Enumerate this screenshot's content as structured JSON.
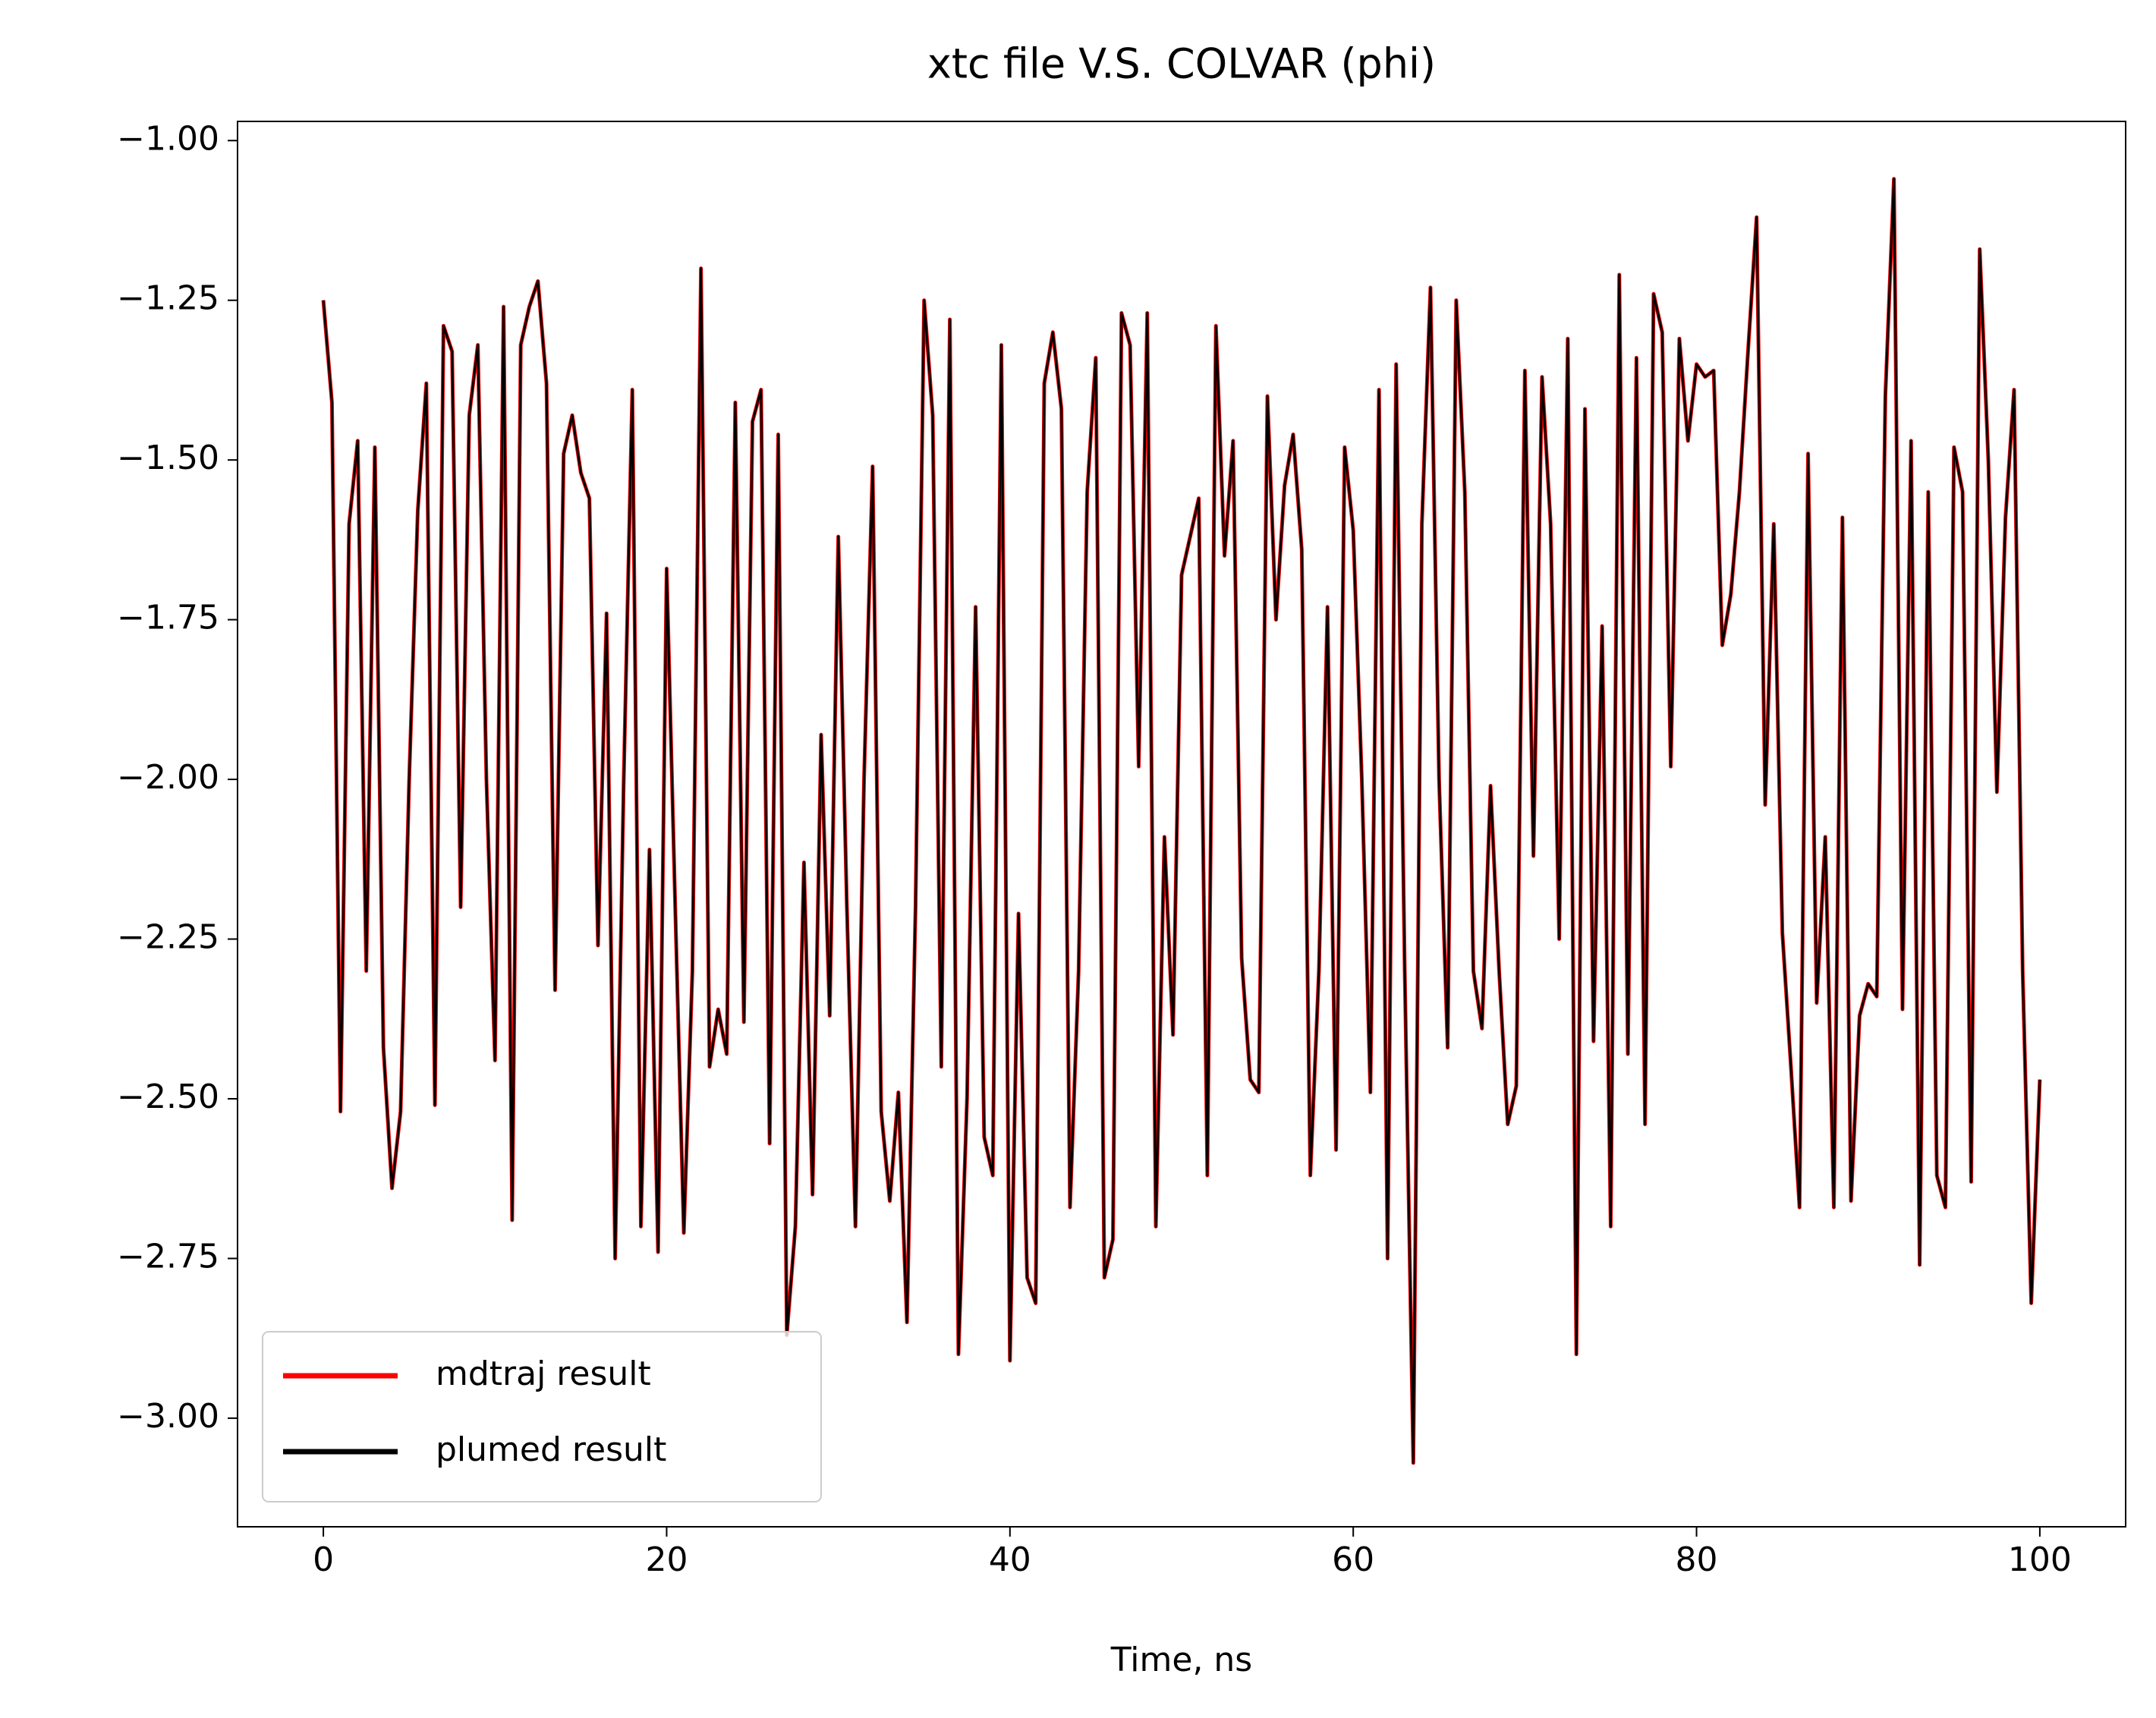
{
  "chart_data": {
    "type": "line",
    "title": "xtc file V.S. COLVAR (phi)",
    "xlabel": "Time, ns",
    "x": [
      0,
      0.5,
      1,
      1.5,
      2,
      2.5,
      3,
      3.5,
      4,
      4.5,
      5,
      5.5,
      6,
      6.5,
      7,
      7.5,
      8,
      8.5,
      9,
      9.5,
      10,
      10.5,
      11,
      11.5,
      12,
      12.5,
      13,
      13.5,
      14,
      14.5,
      15,
      15.5,
      16,
      16.5,
      17,
      17.5,
      18,
      18.5,
      19,
      19.5,
      20,
      20.5,
      21,
      21.5,
      22,
      22.5,
      23,
      23.5,
      24,
      24.5,
      25,
      25.5,
      26,
      26.5,
      27,
      27.5,
      28,
      28.5,
      29,
      29.5,
      30,
      30.5,
      31,
      31.5,
      32,
      32.5,
      33,
      33.5,
      34,
      34.5,
      35,
      35.5,
      36,
      36.5,
      37,
      37.5,
      38,
      38.5,
      39,
      39.5,
      40,
      40.5,
      41,
      41.5,
      42,
      42.5,
      43,
      43.5,
      44,
      44.5,
      45,
      45.5,
      46,
      46.5,
      47,
      47.5,
      48,
      48.5,
      49,
      49.5,
      50,
      50.5,
      51,
      51.5,
      52,
      52.5,
      53,
      53.5,
      54,
      54.5,
      55,
      55.5,
      56,
      56.5,
      57,
      57.5,
      58,
      58.5,
      59,
      59.5,
      60,
      60.5,
      61,
      61.5,
      62,
      62.5,
      63,
      63.5,
      64,
      64.5,
      65,
      65.5,
      66,
      66.5,
      67,
      67.5,
      68,
      68.5,
      69,
      69.5,
      70,
      70.5,
      71,
      71.5,
      72,
      72.5,
      73,
      73.5,
      74,
      74.5,
      75,
      75.5,
      76,
      76.5,
      77,
      77.5,
      78,
      78.5,
      79,
      79.5,
      80,
      80.5,
      81,
      81.5,
      82,
      82.5,
      83,
      83.5,
      84,
      84.5,
      85,
      85.5,
      86,
      86.5,
      87,
      87.5,
      88,
      88.5,
      89,
      89.5,
      90,
      90.5,
      91,
      91.5,
      92,
      92.5,
      93,
      93.5,
      94,
      94.5,
      95,
      95.5,
      96,
      96.5,
      97,
      97.5,
      98,
      98.5,
      99,
      99.5,
      100
    ],
    "series": [
      {
        "name": "mdtraj result",
        "color": "#ff0000",
        "width": 5,
        "values": [
          -1.25,
          -1.41,
          -2.52,
          -1.6,
          -1.47,
          -2.3,
          -1.48,
          -2.42,
          -2.64,
          -2.52,
          -2.0,
          -1.58,
          -1.38,
          -2.51,
          -1.29,
          -1.33,
          -2.2,
          -1.43,
          -1.32,
          -2.0,
          -2.44,
          -1.26,
          -2.69,
          -1.32,
          -1.26,
          -1.22,
          -1.38,
          -2.33,
          -1.49,
          -1.43,
          -1.52,
          -1.56,
          -2.26,
          -1.74,
          -2.75,
          -2.0,
          -1.39,
          -2.7,
          -2.11,
          -2.74,
          -1.67,
          -2.2,
          -2.71,
          -2.3,
          -1.2,
          -2.45,
          -2.36,
          -2.43,
          -1.41,
          -2.38,
          -1.44,
          -1.39,
          -2.57,
          -1.46,
          -2.87,
          -2.7,
          -2.13,
          -2.65,
          -1.93,
          -2.37,
          -1.62,
          -2.2,
          -2.7,
          -2.0,
          -1.51,
          -2.52,
          -2.66,
          -2.49,
          -2.85,
          -2.2,
          -1.25,
          -1.43,
          -2.45,
          -1.28,
          -2.9,
          -2.5,
          -1.73,
          -2.56,
          -2.62,
          -1.32,
          -2.91,
          -2.21,
          -2.78,
          -2.82,
          -1.38,
          -1.3,
          -1.42,
          -2.67,
          -2.3,
          -1.55,
          -1.34,
          -2.78,
          -2.72,
          -1.27,
          -1.32,
          -1.98,
          -1.27,
          -2.7,
          -2.09,
          -2.4,
          -1.68,
          -1.62,
          -1.56,
          -2.62,
          -1.29,
          -1.65,
          -1.47,
          -2.28,
          -2.47,
          -2.49,
          -1.4,
          -1.75,
          -1.54,
          -1.46,
          -1.64,
          -2.62,
          -2.3,
          -1.73,
          -2.58,
          -1.48,
          -1.61,
          -2.0,
          -2.49,
          -1.39,
          -2.75,
          -1.35,
          -2.3,
          -3.07,
          -1.6,
          -1.23,
          -2.0,
          -2.42,
          -1.25,
          -1.55,
          -2.3,
          -2.39,
          -2.01,
          -2.3,
          -2.54,
          -2.48,
          -1.36,
          -2.12,
          -1.37,
          -1.6,
          -2.25,
          -1.31,
          -2.9,
          -1.42,
          -2.41,
          -1.76,
          -2.7,
          -1.21,
          -2.43,
          -1.34,
          -2.54,
          -1.24,
          -1.3,
          -1.98,
          -1.31,
          -1.47,
          -1.35,
          -1.37,
          -1.36,
          -1.79,
          -1.71,
          -1.55,
          -1.33,
          -1.12,
          -2.04,
          -1.6,
          -2.24,
          -2.45,
          -2.67,
          -1.49,
          -2.35,
          -2.09,
          -2.67,
          -1.59,
          -2.66,
          -2.37,
          -2.32,
          -2.34,
          -1.4,
          -1.06,
          -2.36,
          -1.47,
          -2.76,
          -1.55,
          -2.62,
          -2.67,
          -1.48,
          -1.55,
          -2.63,
          -1.17,
          -1.5,
          -2.02,
          -1.59,
          -1.39,
          -2.3,
          -2.82,
          -2.47
        ]
      },
      {
        "name": "plumed result",
        "color": "#000000",
        "width": 3,
        "values": [
          -1.25,
          -1.41,
          -2.52,
          -1.6,
          -1.47,
          -2.3,
          -1.48,
          -2.42,
          -2.64,
          -2.52,
          -2.0,
          -1.58,
          -1.38,
          -2.51,
          -1.29,
          -1.33,
          -2.2,
          -1.43,
          -1.32,
          -2.0,
          -2.44,
          -1.26,
          -2.69,
          -1.32,
          -1.26,
          -1.22,
          -1.38,
          -2.33,
          -1.49,
          -1.43,
          -1.52,
          -1.56,
          -2.26,
          -1.74,
          -2.75,
          -2.0,
          -1.39,
          -2.7,
          -2.11,
          -2.74,
          -1.67,
          -2.2,
          -2.71,
          -2.3,
          -1.2,
          -2.45,
          -2.36,
          -2.43,
          -1.41,
          -2.38,
          -1.44,
          -1.39,
          -2.57,
          -1.46,
          -2.87,
          -2.7,
          -2.13,
          -2.65,
          -1.93,
          -2.37,
          -1.62,
          -2.2,
          -2.7,
          -2.0,
          -1.51,
          -2.52,
          -2.66,
          -2.49,
          -2.85,
          -2.2,
          -1.25,
          -1.43,
          -2.45,
          -1.28,
          -2.9,
          -2.5,
          -1.73,
          -2.56,
          -2.62,
          -1.32,
          -2.91,
          -2.21,
          -2.78,
          -2.82,
          -1.38,
          -1.3,
          -1.42,
          -2.67,
          -2.3,
          -1.55,
          -1.34,
          -2.78,
          -2.72,
          -1.27,
          -1.32,
          -1.98,
          -1.27,
          -2.7,
          -2.09,
          -2.4,
          -1.68,
          -1.62,
          -1.56,
          -2.62,
          -1.29,
          -1.65,
          -1.47,
          -2.28,
          -2.47,
          -2.49,
          -1.4,
          -1.75,
          -1.54,
          -1.46,
          -1.64,
          -2.62,
          -2.3,
          -1.73,
          -2.58,
          -1.48,
          -1.61,
          -2.0,
          -2.49,
          -1.39,
          -2.75,
          -1.35,
          -2.3,
          -3.07,
          -1.6,
          -1.23,
          -2.0,
          -2.42,
          -1.25,
          -1.55,
          -2.3,
          -2.39,
          -2.01,
          -2.3,
          -2.54,
          -2.48,
          -1.36,
          -2.12,
          -1.37,
          -1.6,
          -2.25,
          -1.31,
          -2.9,
          -1.42,
          -2.41,
          -1.76,
          -2.7,
          -1.21,
          -2.43,
          -1.34,
          -2.54,
          -1.24,
          -1.3,
          -1.98,
          -1.31,
          -1.47,
          -1.35,
          -1.37,
          -1.36,
          -1.79,
          -1.71,
          -1.55,
          -1.33,
          -1.12,
          -2.04,
          -1.6,
          -2.24,
          -2.45,
          -2.67,
          -1.49,
          -2.35,
          -2.09,
          -2.67,
          -1.59,
          -2.66,
          -2.37,
          -2.32,
          -2.34,
          -1.4,
          -1.06,
          -2.36,
          -1.47,
          -2.76,
          -1.55,
          -2.62,
          -2.67,
          -1.48,
          -1.55,
          -2.63,
          -1.17,
          -1.5,
          -2.02,
          -1.59,
          -1.39,
          -2.3,
          -2.82,
          -2.47
        ]
      }
    ],
    "xlim": [
      -5,
      105
    ],
    "ylim": [
      -3.17,
      -0.97
    ],
    "xticks": [
      0,
      20,
      40,
      60,
      80,
      100
    ],
    "yticks": [
      {
        "value": -3.0,
        "label": "−3.00"
      },
      {
        "value": -2.75,
        "label": "−2.75"
      },
      {
        "value": -2.5,
        "label": "−2.50"
      },
      {
        "value": -2.25,
        "label": "−2.25"
      },
      {
        "value": -2.0,
        "label": "−2.00"
      },
      {
        "value": -1.75,
        "label": "−1.75"
      },
      {
        "value": -1.5,
        "label": "−1.50"
      },
      {
        "value": -1.25,
        "label": "−1.25"
      },
      {
        "value": -1.0,
        "label": "−1.00"
      }
    ],
    "grid": false,
    "legend": "lower left"
  }
}
